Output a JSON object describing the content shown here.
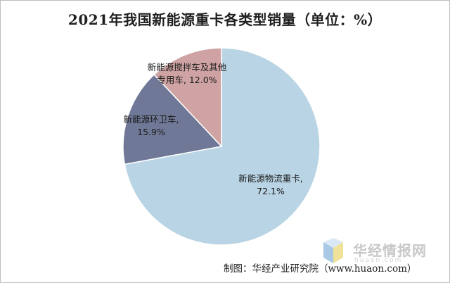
{
  "chart_data": {
    "type": "pie",
    "title": "2021年我国新能源重卡各类型销量（单位：%）",
    "slices": [
      {
        "name": "新能源物流重卡",
        "value": 72.1,
        "value_label": "72.1%",
        "color": "#b9d4e4"
      },
      {
        "name": "新能源环卫车",
        "value": 15.9,
        "value_label": "15.9%",
        "color": "#6f7896"
      },
      {
        "name": "新能源搅拌车及其他专用车",
        "value": 12.0,
        "value_label": "12.0%",
        "color": "#cfa3a3"
      }
    ],
    "labels": [
      {
        "line1": "新能源物流重卡,",
        "line2": "72.1%"
      },
      {
        "line1": "新能源环卫车,",
        "line2": "15.9%"
      },
      {
        "line1": "新能源搅拌车及其他",
        "line2": "专用车, 12.0%"
      }
    ]
  },
  "source": "制图：华经产业研究院（www.huaon.com）",
  "watermark": {
    "text": "华经情报网",
    "sub": "huaon.com"
  }
}
